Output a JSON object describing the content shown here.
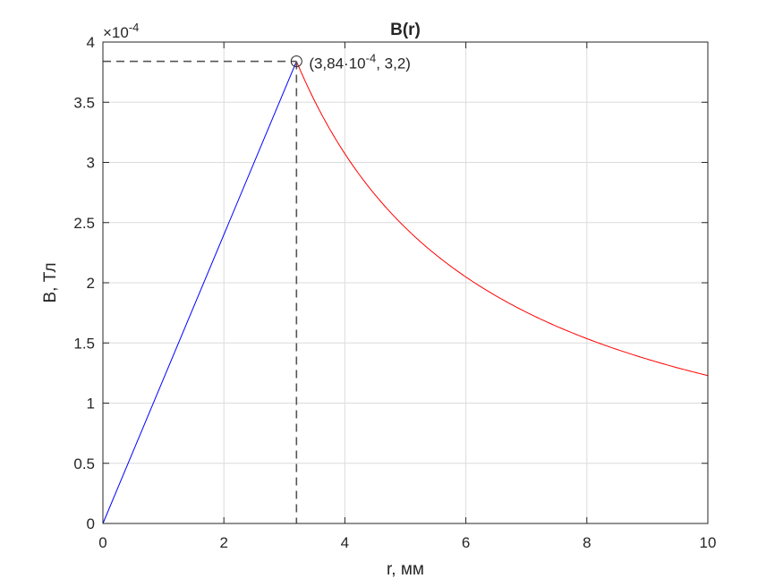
{
  "chart_data": {
    "type": "line",
    "title": "B(r)",
    "xlabel": "r, мм",
    "ylabel": "B, Тл",
    "xlim": [
      0,
      10
    ],
    "ylim": [
      0,
      0.0004
    ],
    "y_exponent_label": "×10",
    "y_exponent": "-4",
    "grid": true,
    "xticks": [
      "0",
      "2",
      "4",
      "6",
      "8",
      "10"
    ],
    "yticks": [
      "0",
      "0.5",
      "1",
      "1.5",
      "2",
      "2.5",
      "3",
      "3.5",
      "4"
    ],
    "series": [
      {
        "color": "#0000ff",
        "x": [
          0,
          3.2
        ],
        "y": [
          0,
          0.000384
        ]
      },
      {
        "color": "#ff0000",
        "x": [
          3.2,
          3.5,
          4,
          4.5,
          5,
          5.5,
          6,
          6.5,
          7,
          7.5,
          8,
          8.5,
          9,
          9.5,
          10
        ],
        "y": [
          0.000384,
          0.000351,
          0.000307,
          0.000273,
          0.000246,
          0.000223,
          0.000205,
          0.000189,
          0.000176,
          0.000164,
          0.000154,
          0.000145,
          0.000137,
          0.000129,
          0.000123
        ]
      }
    ],
    "annotation": {
      "x": 3.2,
      "y": 0.000384,
      "label_prefix": "(3,84·10",
      "label_exp": "-4",
      "label_suffix": ", 3,2)"
    }
  }
}
